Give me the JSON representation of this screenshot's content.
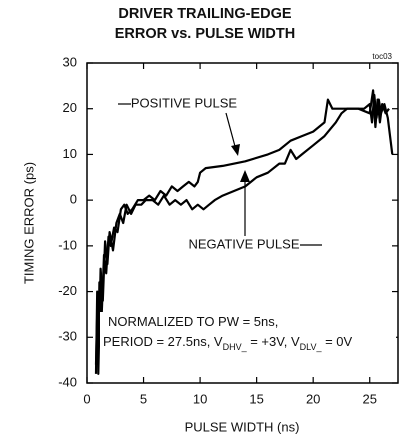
{
  "chart_data": {
    "type": "line",
    "title": [
      "DRIVER TRAILING-EDGE",
      "ERROR vs. PULSE WIDTH"
    ],
    "figure_id": "toc03",
    "xlabel": "PULSE WIDTH (ns)",
    "ylabel": "TIMING ERROR (ps)",
    "xlim": [
      0,
      27.5
    ],
    "ylim": [
      -40,
      30
    ],
    "xticks": [
      0,
      5,
      10,
      15,
      20,
      25
    ],
    "yticks": [
      30,
      20,
      10,
      0,
      -10,
      -20,
      -30,
      -40
    ],
    "grid": false,
    "note": [
      [
        "NORMALIZED TO PW = 5ns,"
      ],
      [
        "PERIOD = 27.5ns, V",
        "DHV_",
        " = +3V, V",
        "DLV_",
        " = 0V"
      ]
    ],
    "series": [
      {
        "name": "POSITIVE PULSE",
        "color": "#000000",
        "x": [
          0.8,
          0.9,
          1.0,
          1.1,
          1.3,
          1.5,
          1.7,
          1.9,
          2.1,
          2.4,
          2.7,
          3.0,
          3.3,
          3.6,
          4.0,
          4.5,
          5.0,
          5.5,
          6.0,
          6.5,
          7.0,
          7.5,
          8.0,
          8.5,
          9.0,
          9.5,
          9.8,
          10.0,
          10.5,
          12,
          14,
          16,
          17,
          18,
          19,
          20,
          21,
          21.3,
          21.7,
          23,
          24.5,
          25,
          25.2,
          25.4,
          25.6,
          25.8,
          26,
          26.3,
          26.6,
          27
        ],
        "values": [
          -38,
          -20,
          -33,
          -18,
          -25,
          -12,
          -16,
          -8,
          -10,
          -6,
          -7,
          -2,
          -1,
          -3,
          -2,
          0,
          0,
          1,
          0,
          2,
          1,
          3,
          2,
          3,
          4,
          3,
          4,
          6,
          7,
          7.5,
          8.5,
          10,
          11,
          13,
          14,
          15,
          17,
          22,
          20,
          20,
          20,
          21,
          17,
          23,
          18,
          22,
          19,
          21,
          18,
          10
        ]
      },
      {
        "name": "NEGATIVE PULSE",
        "color": "#000000",
        "x": [
          0.8,
          0.9,
          1.0,
          1.2,
          1.4,
          1.6,
          1.8,
          2.0,
          2.3,
          2.6,
          2.9,
          3.2,
          3.5,
          3.9,
          4.3,
          4.8,
          5.2,
          5.8,
          6.3,
          6.8,
          7.3,
          7.8,
          8.3,
          8.8,
          9.3,
          9.8,
          10.3,
          10.8,
          11.3,
          12,
          13,
          14,
          15,
          16,
          17,
          17.5,
          18,
          18.5,
          19,
          20,
          21,
          22,
          22.5,
          23,
          24,
          25,
          25.3,
          25.5,
          25.7,
          25.9,
          26.1,
          26.4,
          26.7
        ],
        "values": [
          -36,
          -25,
          -38,
          -15,
          -22,
          -9,
          -14,
          -7,
          -11,
          -5,
          -3,
          -5,
          -1,
          -3,
          -1,
          -1,
          0,
          0,
          -1,
          1,
          -1,
          0,
          -1,
          0,
          -2,
          -1,
          -2,
          -1,
          0,
          1,
          2,
          3,
          5,
          6,
          8,
          8,
          11,
          9,
          10,
          12,
          14,
          17,
          19,
          20,
          20,
          19,
          24,
          16,
          22,
          17,
          21,
          19,
          20
        ]
      }
    ]
  }
}
